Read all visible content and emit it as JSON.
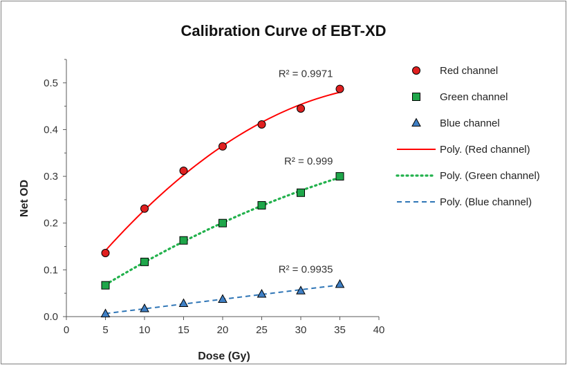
{
  "chart_data": {
    "type": "scatter",
    "title": "Calibration Curve of EBT-XD",
    "xlabel": "Dose (Gy)",
    "ylabel": "Net OD",
    "xlim": [
      0,
      40
    ],
    "ylim": [
      0,
      0.55
    ],
    "xticks": [
      "0",
      "5",
      "10",
      "15",
      "20",
      "25",
      "30",
      "35",
      "40"
    ],
    "yticks": [
      "0.0",
      "0.1",
      "0.2",
      "0.3",
      "0.4",
      "0.5"
    ],
    "grid": "none",
    "legend_position": "right",
    "series": [
      {
        "name": "Red channel",
        "marker": "circle",
        "color": "#e02020",
        "x": [
          5,
          10,
          15,
          20,
          25,
          30,
          35
        ],
        "y": [
          0.136,
          0.231,
          0.312,
          0.364,
          0.411,
          0.445,
          0.487
        ],
        "fit_name": "Poly. (Red channel)",
        "fit_style": "solid",
        "fit_color": "#ff0000",
        "r2": "R² = 0.9971"
      },
      {
        "name": "Green channel",
        "marker": "square",
        "color": "#1fa64a",
        "x": [
          5,
          10,
          15,
          20,
          25,
          30,
          35
        ],
        "y": [
          0.067,
          0.117,
          0.163,
          0.2,
          0.238,
          0.265,
          0.3
        ],
        "fit_name": "Poly. (Green channel)",
        "fit_style": "dotted",
        "fit_color": "#22b14c",
        "r2": "R² = 0.999"
      },
      {
        "name": "Blue channel",
        "marker": "triangle",
        "color": "#3f7fc4",
        "x": [
          5,
          10,
          15,
          20,
          25,
          30,
          35
        ],
        "y": [
          0.006,
          0.017,
          0.028,
          0.037,
          0.048,
          0.055,
          0.069
        ],
        "fit_name": "Poly. (Blue channel)",
        "fit_style": "dashed",
        "fit_color": "#2e75b6",
        "r2": "R² = 0.9935"
      }
    ]
  }
}
